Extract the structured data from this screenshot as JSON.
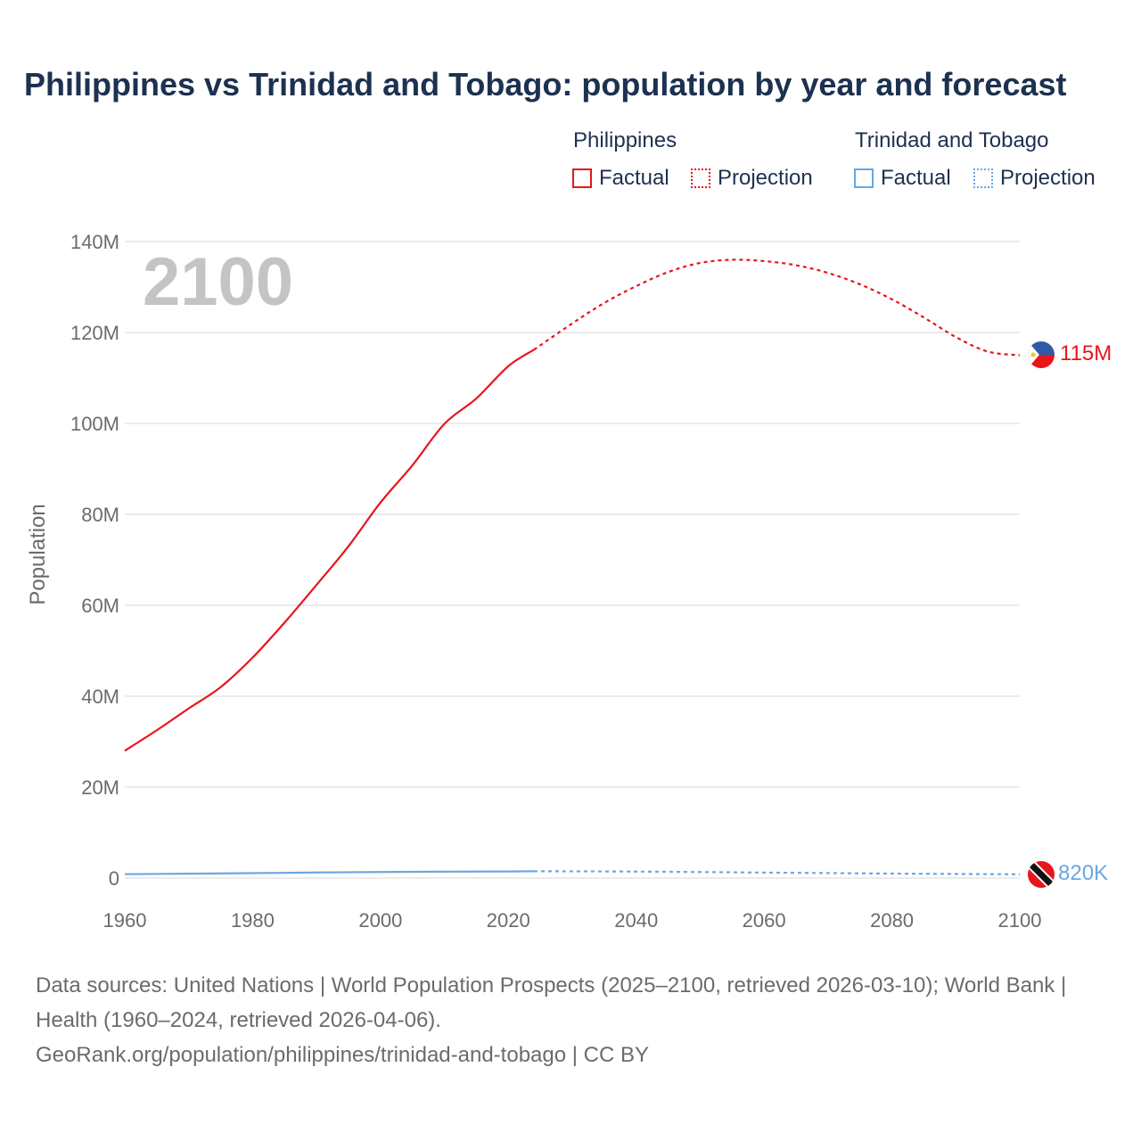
{
  "title": "Philippines vs Trinidad and Tobago: population by year and forecast",
  "legend": {
    "group1": {
      "name": "Philippines",
      "factual": "Factual",
      "projection": "Projection",
      "color": "#e8151b"
    },
    "group2": {
      "name": "Trinidad and Tobago",
      "factual": "Factual",
      "projection": "Projection",
      "color": "#6aa7e3"
    }
  },
  "footer": {
    "line1": "Data sources: United Nations | World Population Prospects (2025–2100, retrieved 2026-03-10); World Bank | Health (1960–2024, retrieved 2026-04-06).",
    "line2": "GeoRank.org/population/philippines/trinidad-and-tobago | CC BY"
  },
  "chart_data": {
    "type": "line",
    "year_watermark": "2100",
    "ylabel": "Population",
    "xlim": [
      1960,
      2100
    ],
    "ylim": [
      0,
      140000000
    ],
    "x_ticks": [
      "1960",
      "1980",
      "2000",
      "2020",
      "2040",
      "2060",
      "2080",
      "2100"
    ],
    "y_ticks": [
      "0",
      "20M",
      "40M",
      "60M",
      "80M",
      "100M",
      "120M",
      "140M"
    ],
    "split_year": 2024,
    "series": [
      {
        "name": "Philippines",
        "color": "#e8151b",
        "end_label": "115M",
        "x": [
          1960,
          1965,
          1970,
          1975,
          1980,
          1985,
          1990,
          1995,
          2000,
          2005,
          2010,
          2015,
          2020,
          2024,
          2030,
          2035,
          2040,
          2045,
          2050,
          2055,
          2060,
          2065,
          2070,
          2075,
          2080,
          2085,
          2090,
          2095,
          2100
        ],
        "y": [
          28000000,
          32500000,
          37300000,
          42000000,
          48500000,
          56200000,
          64500000,
          73000000,
          82600000,
          90800000,
          99900000,
          105500000,
          112600000,
          116200000,
          122000000,
          126500000,
          130200000,
          133300000,
          135300000,
          136000000,
          135700000,
          134800000,
          133100000,
          130600000,
          127300000,
          123300000,
          119000000,
          115800000,
          115000000
        ]
      },
      {
        "name": "Trinidad and Tobago",
        "color": "#6aa7e3",
        "end_label": "820K",
        "x": [
          1960,
          1970,
          1980,
          1990,
          2000,
          2010,
          2020,
          2024,
          2030,
          2040,
          2050,
          2060,
          2070,
          2080,
          2090,
          2100
        ],
        "y": [
          850000,
          960000,
          1080000,
          1220000,
          1330000,
          1400000,
          1450000,
          1500000,
          1480000,
          1420000,
          1320000,
          1200000,
          1090000,
          980000,
          900000,
          820000
        ]
      }
    ]
  }
}
